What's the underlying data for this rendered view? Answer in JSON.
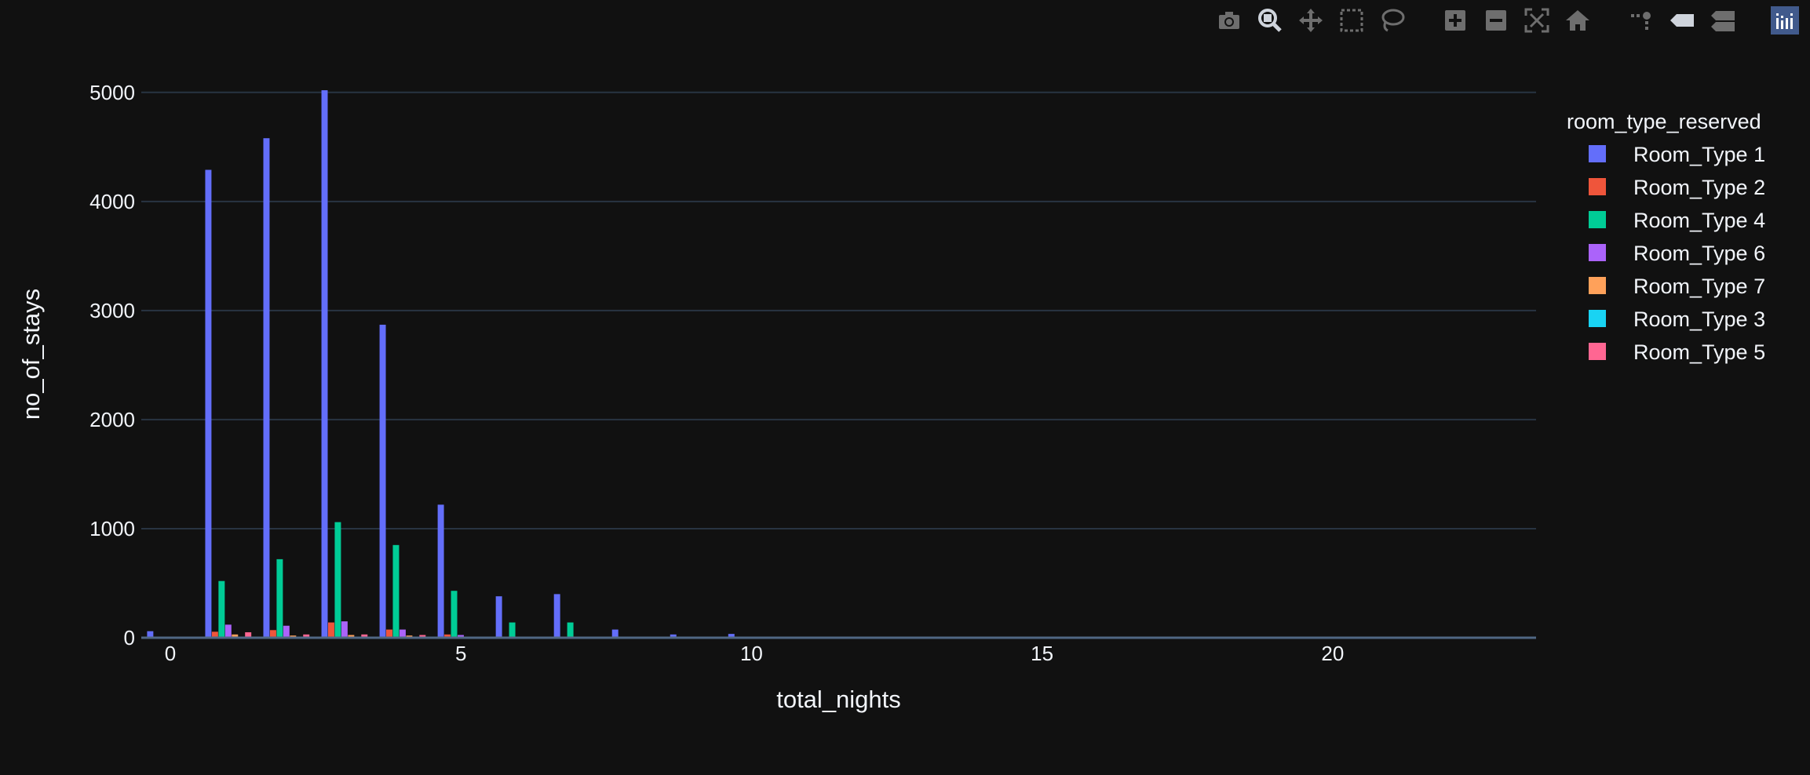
{
  "modebar": {
    "buttons": [
      {
        "name": "camera-icon",
        "group": 0
      },
      {
        "name": "zoom-icon",
        "group": 0,
        "active": true
      },
      {
        "name": "pan-icon",
        "group": 0
      },
      {
        "name": "box-select-icon",
        "group": 0
      },
      {
        "name": "lasso-select-icon",
        "group": 0
      },
      {
        "name": "zoom-in-icon",
        "group": 1
      },
      {
        "name": "zoom-out-icon",
        "group": 1
      },
      {
        "name": "autoscale-icon",
        "group": 1
      },
      {
        "name": "reset-axes-icon",
        "group": 1
      },
      {
        "name": "spike-lines-icon",
        "group": 2
      },
      {
        "name": "hover-closest-icon",
        "group": 2
      },
      {
        "name": "hover-compare-icon",
        "group": 2
      },
      {
        "name": "plotly-logo-icon",
        "group": 3
      }
    ]
  },
  "chart_data": {
    "type": "bar",
    "xlabel": "total_nights",
    "ylabel": "no_of_stays",
    "xlim": [
      -0.5,
      23.5
    ],
    "ylim": [
      0,
      5200
    ],
    "xticks": [
      0,
      5,
      10,
      15,
      20
    ],
    "yticks": [
      0,
      1000,
      2000,
      3000,
      4000,
      5000
    ],
    "grid": true,
    "legend_title": "room_type_reserved",
    "legend_position": "right",
    "x": [
      0,
      1,
      2,
      3,
      4,
      5,
      6,
      7,
      8,
      9,
      10,
      11,
      12,
      13,
      14,
      15,
      16,
      17,
      18,
      19,
      20,
      21,
      22,
      23
    ],
    "series": [
      {
        "name": "Room_Type 1",
        "color": "#636efa",
        "values": [
          60,
          4290,
          4580,
          5020,
          2870,
          1220,
          380,
          400,
          75,
          30,
          35,
          10,
          8,
          6,
          8,
          5,
          4,
          3,
          3,
          3,
          3,
          2,
          2,
          2
        ]
      },
      {
        "name": "Room_Type 2",
        "color": "#ef553b",
        "values": [
          0,
          55,
          70,
          140,
          75,
          30,
          5,
          5,
          0,
          0,
          0,
          0,
          0,
          0,
          0,
          0,
          0,
          0,
          0,
          0,
          0,
          0,
          0,
          0
        ]
      },
      {
        "name": "Room_Type 4",
        "color": "#00cc96",
        "values": [
          5,
          520,
          720,
          1060,
          850,
          430,
          140,
          140,
          10,
          10,
          5,
          3,
          2,
          2,
          2,
          1,
          1,
          1,
          1,
          1,
          1,
          1,
          1,
          1
        ]
      },
      {
        "name": "Room_Type 6",
        "color": "#ab63fa",
        "values": [
          0,
          120,
          110,
          150,
          75,
          25,
          8,
          8,
          2,
          0,
          0,
          0,
          0,
          0,
          0,
          0,
          0,
          0,
          0,
          0,
          0,
          0,
          0,
          0
        ]
      },
      {
        "name": "Room_Type 7",
        "color": "#ffa15a",
        "values": [
          0,
          30,
          20,
          25,
          20,
          5,
          2,
          2,
          0,
          0,
          0,
          0,
          0,
          0,
          0,
          0,
          0,
          0,
          0,
          0,
          0,
          0,
          0,
          0
        ]
      },
      {
        "name": "Room_Type 3",
        "color": "#19d3f3",
        "values": [
          0,
          2,
          2,
          3,
          2,
          1,
          0,
          0,
          0,
          0,
          0,
          0,
          0,
          0,
          0,
          0,
          0,
          0,
          0,
          0,
          0,
          0,
          0,
          0
        ]
      },
      {
        "name": "Room_Type 5",
        "color": "#ff6692",
        "values": [
          0,
          50,
          30,
          30,
          25,
          10,
          3,
          3,
          0,
          0,
          0,
          0,
          0,
          0,
          0,
          0,
          0,
          0,
          0,
          0,
          0,
          0,
          0,
          0
        ]
      }
    ]
  }
}
